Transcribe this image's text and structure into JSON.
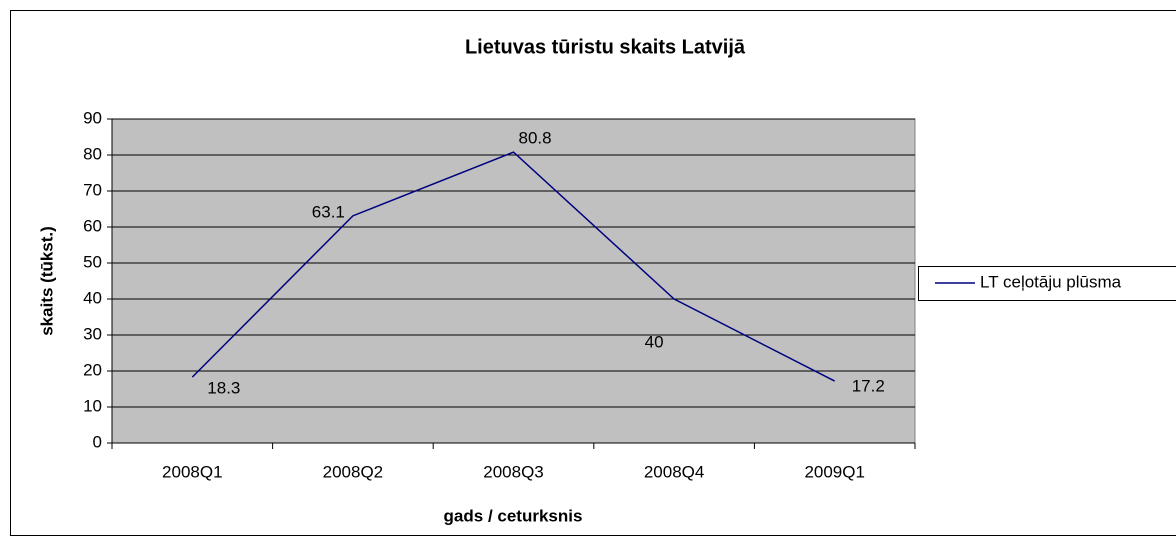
{
  "chart_data": {
    "type": "line",
    "title": "Lietuvas tūristu skaits Latvijā",
    "x_label": "gads / ceturksnis",
    "y_label": "skaits (tūkst.)",
    "categories": [
      "2008Q1",
      "2008Q2",
      "2008Q3",
      "2008Q4",
      "2009Q1"
    ],
    "series": [
      {
        "name": "LT ceļotāju plūsma",
        "color": "#000080",
        "values": [
          18.3,
          63.1,
          80.8,
          40,
          17.2
        ]
      }
    ],
    "ylim": [
      0,
      90
    ],
    "yticks": [
      0,
      10,
      20,
      30,
      40,
      50,
      60,
      70,
      80,
      90
    ],
    "grid": true,
    "legend": "right",
    "plot_background": "#c0c0c0"
  }
}
